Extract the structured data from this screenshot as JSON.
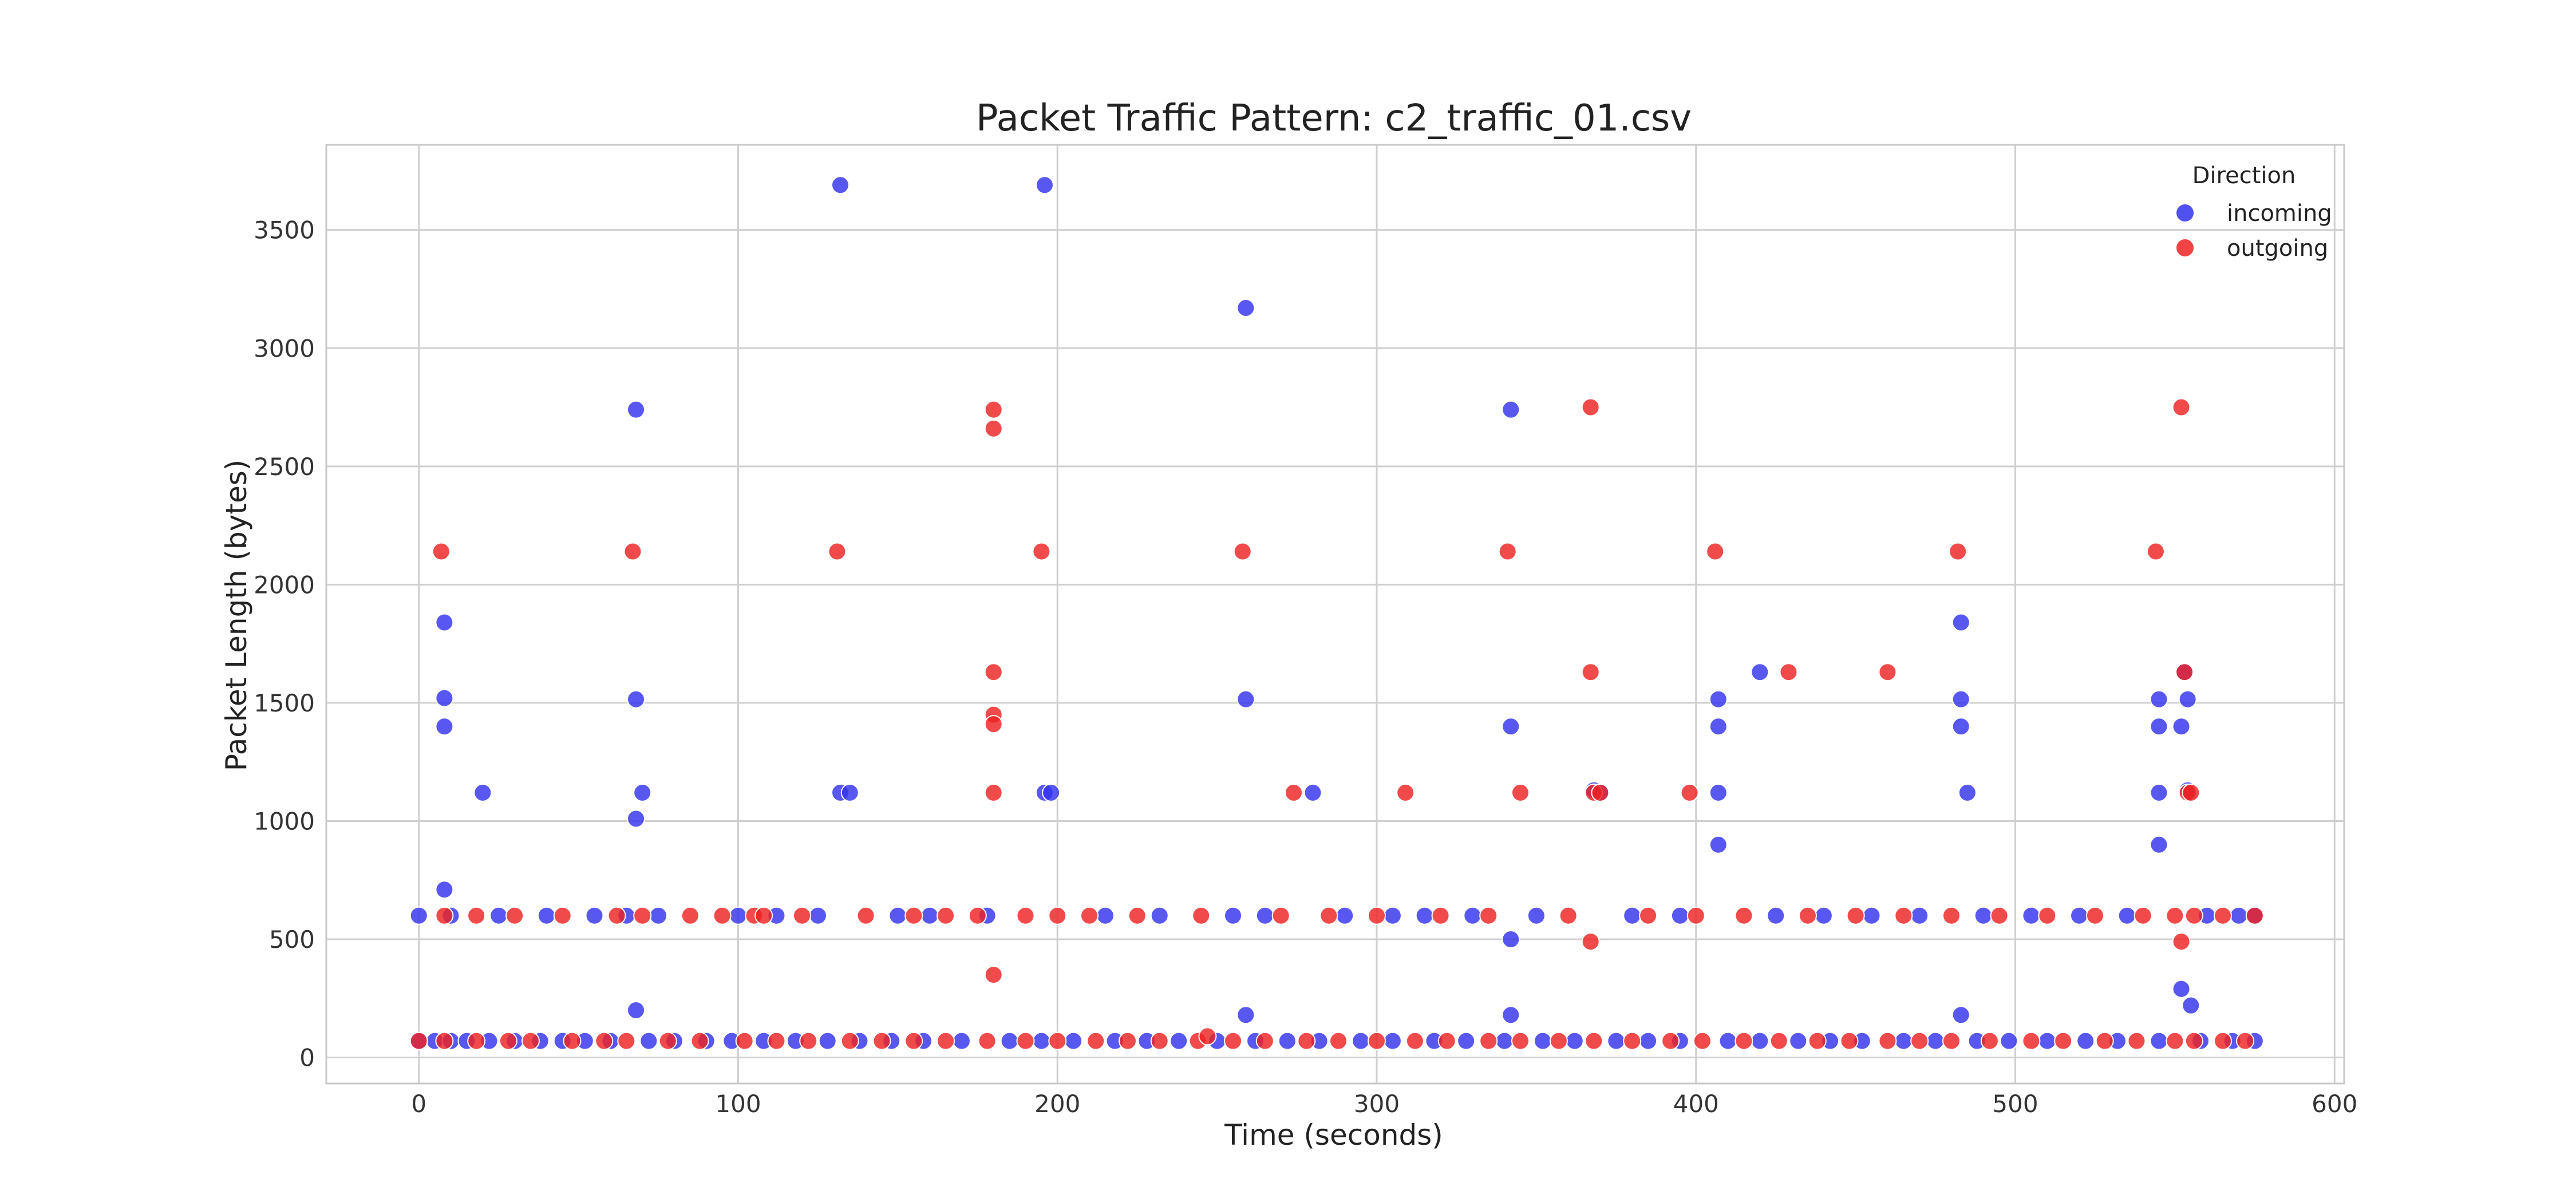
{
  "chart_data": {
    "type": "scatter",
    "title": "Packet Traffic Pattern: c2_traffic_01.csv",
    "xlabel": "Time (seconds)",
    "ylabel": "Packet Length (bytes)",
    "xlim": [
      -29,
      603
    ],
    "ylim": [
      -110,
      3860
    ],
    "x_ticks": [
      0,
      100,
      200,
      300,
      400,
      500,
      600
    ],
    "y_ticks": [
      0,
      500,
      1000,
      1500,
      2000,
      2500,
      3000,
      3500
    ],
    "grid": true,
    "legend": {
      "title": "Direction",
      "placement": "top-right"
    },
    "series": [
      {
        "name": "incoming",
        "color": "#3333ee",
        "points": [
          [
            0,
            600
          ],
          [
            8,
            1840
          ],
          [
            8,
            1520
          ],
          [
            8,
            1400
          ],
          [
            8,
            710
          ],
          [
            10,
            600
          ],
          [
            20,
            1120
          ],
          [
            25,
            600
          ],
          [
            40,
            600
          ],
          [
            55,
            600
          ],
          [
            65,
            600
          ],
          [
            68,
            2740
          ],
          [
            68,
            1515
          ],
          [
            68,
            1010
          ],
          [
            68,
            200
          ],
          [
            70,
            1120
          ],
          [
            75,
            600
          ],
          [
            100,
            600
          ],
          [
            112,
            600
          ],
          [
            125,
            600
          ],
          [
            132,
            3690
          ],
          [
            132,
            1120
          ],
          [
            135,
            1120
          ],
          [
            150,
            600
          ],
          [
            160,
            600
          ],
          [
            178,
            600
          ],
          [
            196,
            3690
          ],
          [
            196,
            1120
          ],
          [
            198,
            1120
          ],
          [
            215,
            600
          ],
          [
            232,
            600
          ],
          [
            255,
            600
          ],
          [
            259,
            3170
          ],
          [
            259,
            1515
          ],
          [
            259,
            180
          ],
          [
            265,
            600
          ],
          [
            280,
            1120
          ],
          [
            290,
            600
          ],
          [
            305,
            600
          ],
          [
            315,
            600
          ],
          [
            330,
            600
          ],
          [
            342,
            2740
          ],
          [
            342,
            1400
          ],
          [
            342,
            500
          ],
          [
            342,
            180
          ],
          [
            350,
            600
          ],
          [
            368,
            1130
          ],
          [
            370,
            1120
          ],
          [
            380,
            600
          ],
          [
            395,
            600
          ],
          [
            407,
            1515
          ],
          [
            407,
            1400
          ],
          [
            407,
            1120
          ],
          [
            407,
            900
          ],
          [
            420,
            1630
          ],
          [
            425,
            600
          ],
          [
            440,
            600
          ],
          [
            455,
            600
          ],
          [
            470,
            600
          ],
          [
            483,
            1840
          ],
          [
            483,
            1515
          ],
          [
            483,
            1400
          ],
          [
            483,
            180
          ],
          [
            485,
            1120
          ],
          [
            490,
            600
          ],
          [
            505,
            600
          ],
          [
            520,
            600
          ],
          [
            535,
            600
          ],
          [
            545,
            1515
          ],
          [
            545,
            1400
          ],
          [
            545,
            1120
          ],
          [
            545,
            900
          ],
          [
            552,
            1400
          ],
          [
            552,
            290
          ],
          [
            553,
            1630
          ],
          [
            554,
            1515
          ],
          [
            554,
            1130
          ],
          [
            555,
            220
          ],
          [
            560,
            600
          ],
          [
            570,
            600
          ],
          [
            575,
            600
          ],
          [
            0,
            70
          ],
          [
            5,
            70
          ],
          [
            10,
            70
          ],
          [
            15,
            70
          ],
          [
            22,
            70
          ],
          [
            30,
            70
          ],
          [
            38,
            70
          ],
          [
            45,
            70
          ],
          [
            52,
            70
          ],
          [
            60,
            70
          ],
          [
            72,
            70
          ],
          [
            80,
            70
          ],
          [
            90,
            70
          ],
          [
            98,
            70
          ],
          [
            108,
            70
          ],
          [
            118,
            70
          ],
          [
            128,
            70
          ],
          [
            138,
            70
          ],
          [
            148,
            70
          ],
          [
            158,
            70
          ],
          [
            170,
            70
          ],
          [
            185,
            70
          ],
          [
            195,
            70
          ],
          [
            205,
            70
          ],
          [
            218,
            70
          ],
          [
            228,
            70
          ],
          [
            238,
            70
          ],
          [
            250,
            70
          ],
          [
            262,
            70
          ],
          [
            272,
            70
          ],
          [
            282,
            70
          ],
          [
            295,
            70
          ],
          [
            305,
            70
          ],
          [
            318,
            70
          ],
          [
            328,
            70
          ],
          [
            340,
            70
          ],
          [
            352,
            70
          ],
          [
            362,
            70
          ],
          [
            375,
            70
          ],
          [
            385,
            70
          ],
          [
            395,
            70
          ],
          [
            410,
            70
          ],
          [
            420,
            70
          ],
          [
            432,
            70
          ],
          [
            442,
            70
          ],
          [
            452,
            70
          ],
          [
            465,
            70
          ],
          [
            475,
            70
          ],
          [
            488,
            70
          ],
          [
            498,
            70
          ],
          [
            510,
            70
          ],
          [
            522,
            70
          ],
          [
            532,
            70
          ],
          [
            545,
            70
          ],
          [
            558,
            70
          ],
          [
            568,
            70
          ],
          [
            575,
            70
          ]
        ]
      },
      {
        "name": "outgoing",
        "color": "#ee2222",
        "points": [
          [
            7,
            2140
          ],
          [
            8,
            600
          ],
          [
            18,
            600
          ],
          [
            30,
            600
          ],
          [
            45,
            600
          ],
          [
            62,
            600
          ],
          [
            67,
            2140
          ],
          [
            70,
            600
          ],
          [
            85,
            600
          ],
          [
            95,
            600
          ],
          [
            105,
            600
          ],
          [
            108,
            600
          ],
          [
            120,
            600
          ],
          [
            131,
            2140
          ],
          [
            140,
            600
          ],
          [
            155,
            600
          ],
          [
            165,
            600
          ],
          [
            175,
            600
          ],
          [
            180,
            2740
          ],
          [
            180,
            2660
          ],
          [
            180,
            1630
          ],
          [
            180,
            1450
          ],
          [
            180,
            1410
          ],
          [
            180,
            1120
          ],
          [
            180,
            350
          ],
          [
            190,
            600
          ],
          [
            195,
            2140
          ],
          [
            200,
            600
          ],
          [
            210,
            600
          ],
          [
            225,
            600
          ],
          [
            245,
            600
          ],
          [
            258,
            2140
          ],
          [
            270,
            600
          ],
          [
            274,
            1120
          ],
          [
            285,
            600
          ],
          [
            300,
            600
          ],
          [
            309,
            1120
          ],
          [
            320,
            600
          ],
          [
            335,
            600
          ],
          [
            341,
            2140
          ],
          [
            345,
            1120
          ],
          [
            360,
            600
          ],
          [
            367,
            2750
          ],
          [
            367,
            1630
          ],
          [
            367,
            490
          ],
          [
            368,
            1120
          ],
          [
            370,
            1120
          ],
          [
            385,
            600
          ],
          [
            398,
            1120
          ],
          [
            400,
            600
          ],
          [
            406,
            2140
          ],
          [
            415,
            600
          ],
          [
            429,
            1630
          ],
          [
            435,
            600
          ],
          [
            450,
            600
          ],
          [
            460,
            1630
          ],
          [
            465,
            600
          ],
          [
            480,
            600
          ],
          [
            482,
            2140
          ],
          [
            495,
            600
          ],
          [
            510,
            600
          ],
          [
            525,
            600
          ],
          [
            540,
            600
          ],
          [
            544,
            2140
          ],
          [
            550,
            600
          ],
          [
            552,
            2750
          ],
          [
            552,
            490
          ],
          [
            553,
            1630
          ],
          [
            554,
            1120
          ],
          [
            555,
            1120
          ],
          [
            556,
            600
          ],
          [
            565,
            600
          ],
          [
            575,
            600
          ],
          [
            0,
            70
          ],
          [
            8,
            70
          ],
          [
            18,
            70
          ],
          [
            28,
            70
          ],
          [
            35,
            70
          ],
          [
            48,
            70
          ],
          [
            58,
            70
          ],
          [
            65,
            70
          ],
          [
            78,
            70
          ],
          [
            88,
            70
          ],
          [
            102,
            70
          ],
          [
            112,
            70
          ],
          [
            122,
            70
          ],
          [
            135,
            70
          ],
          [
            145,
            70
          ],
          [
            155,
            70
          ],
          [
            165,
            70
          ],
          [
            178,
            70
          ],
          [
            190,
            70
          ],
          [
            200,
            70
          ],
          [
            212,
            70
          ],
          [
            222,
            70
          ],
          [
            232,
            70
          ],
          [
            244,
            70
          ],
          [
            247,
            90
          ],
          [
            255,
            70
          ],
          [
            265,
            70
          ],
          [
            278,
            70
          ],
          [
            288,
            70
          ],
          [
            300,
            70
          ],
          [
            312,
            70
          ],
          [
            322,
            70
          ],
          [
            335,
            70
          ],
          [
            345,
            70
          ],
          [
            357,
            70
          ],
          [
            368,
            70
          ],
          [
            380,
            70
          ],
          [
            392,
            70
          ],
          [
            402,
            70
          ],
          [
            415,
            70
          ],
          [
            426,
            70
          ],
          [
            438,
            70
          ],
          [
            448,
            70
          ],
          [
            460,
            70
          ],
          [
            470,
            70
          ],
          [
            480,
            70
          ],
          [
            492,
            70
          ],
          [
            505,
            70
          ],
          [
            515,
            70
          ],
          [
            528,
            70
          ],
          [
            538,
            70
          ],
          [
            550,
            70
          ],
          [
            556,
            70
          ],
          [
            565,
            70
          ],
          [
            572,
            70
          ]
        ]
      }
    ]
  }
}
